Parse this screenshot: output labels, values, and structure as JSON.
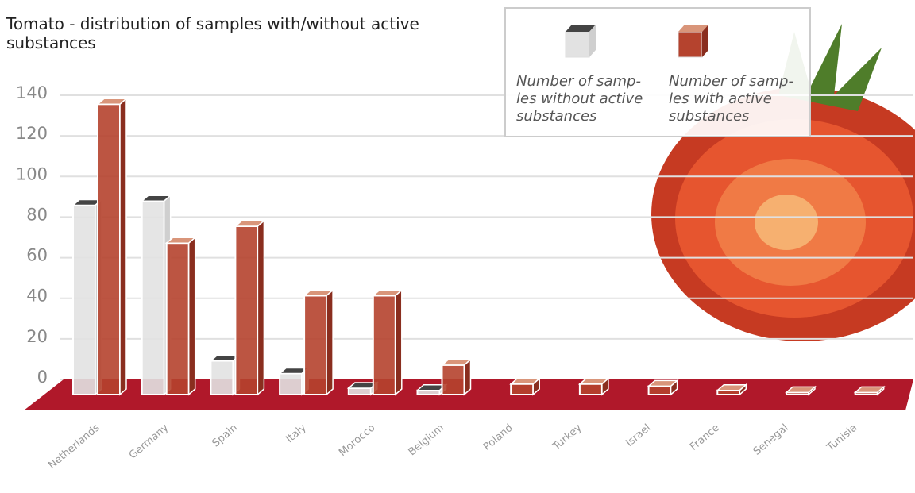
{
  "chart_data": {
    "type": "bar",
    "title": "Tomato - distribution of samples with/without active substances",
    "categories": [
      "Netherlands",
      "Germany",
      "Spain",
      "Italy",
      "Morocco",
      "Belgium",
      "Poland",
      "Turkey",
      "Israel",
      "France",
      "Senegal",
      "Tunisia"
    ],
    "series": [
      {
        "name": [
          "Number of samp-",
          "les without active",
          "substances"
        ],
        "color": "#e2e2e2",
        "values": [
          90,
          92,
          16,
          10,
          3,
          2,
          null,
          null,
          null,
          null,
          null,
          null
        ]
      },
      {
        "name": [
          "Number of samp-",
          "les with active",
          "substances"
        ],
        "color": "#b5432e",
        "values": [
          138,
          72,
          80,
          47,
          47,
          14,
          5,
          5,
          4,
          2,
          1,
          1
        ]
      }
    ],
    "ylim": [
      0,
      140
    ],
    "yticks": [
      0,
      20,
      40,
      60,
      80,
      100,
      120,
      140
    ],
    "grid": true
  }
}
